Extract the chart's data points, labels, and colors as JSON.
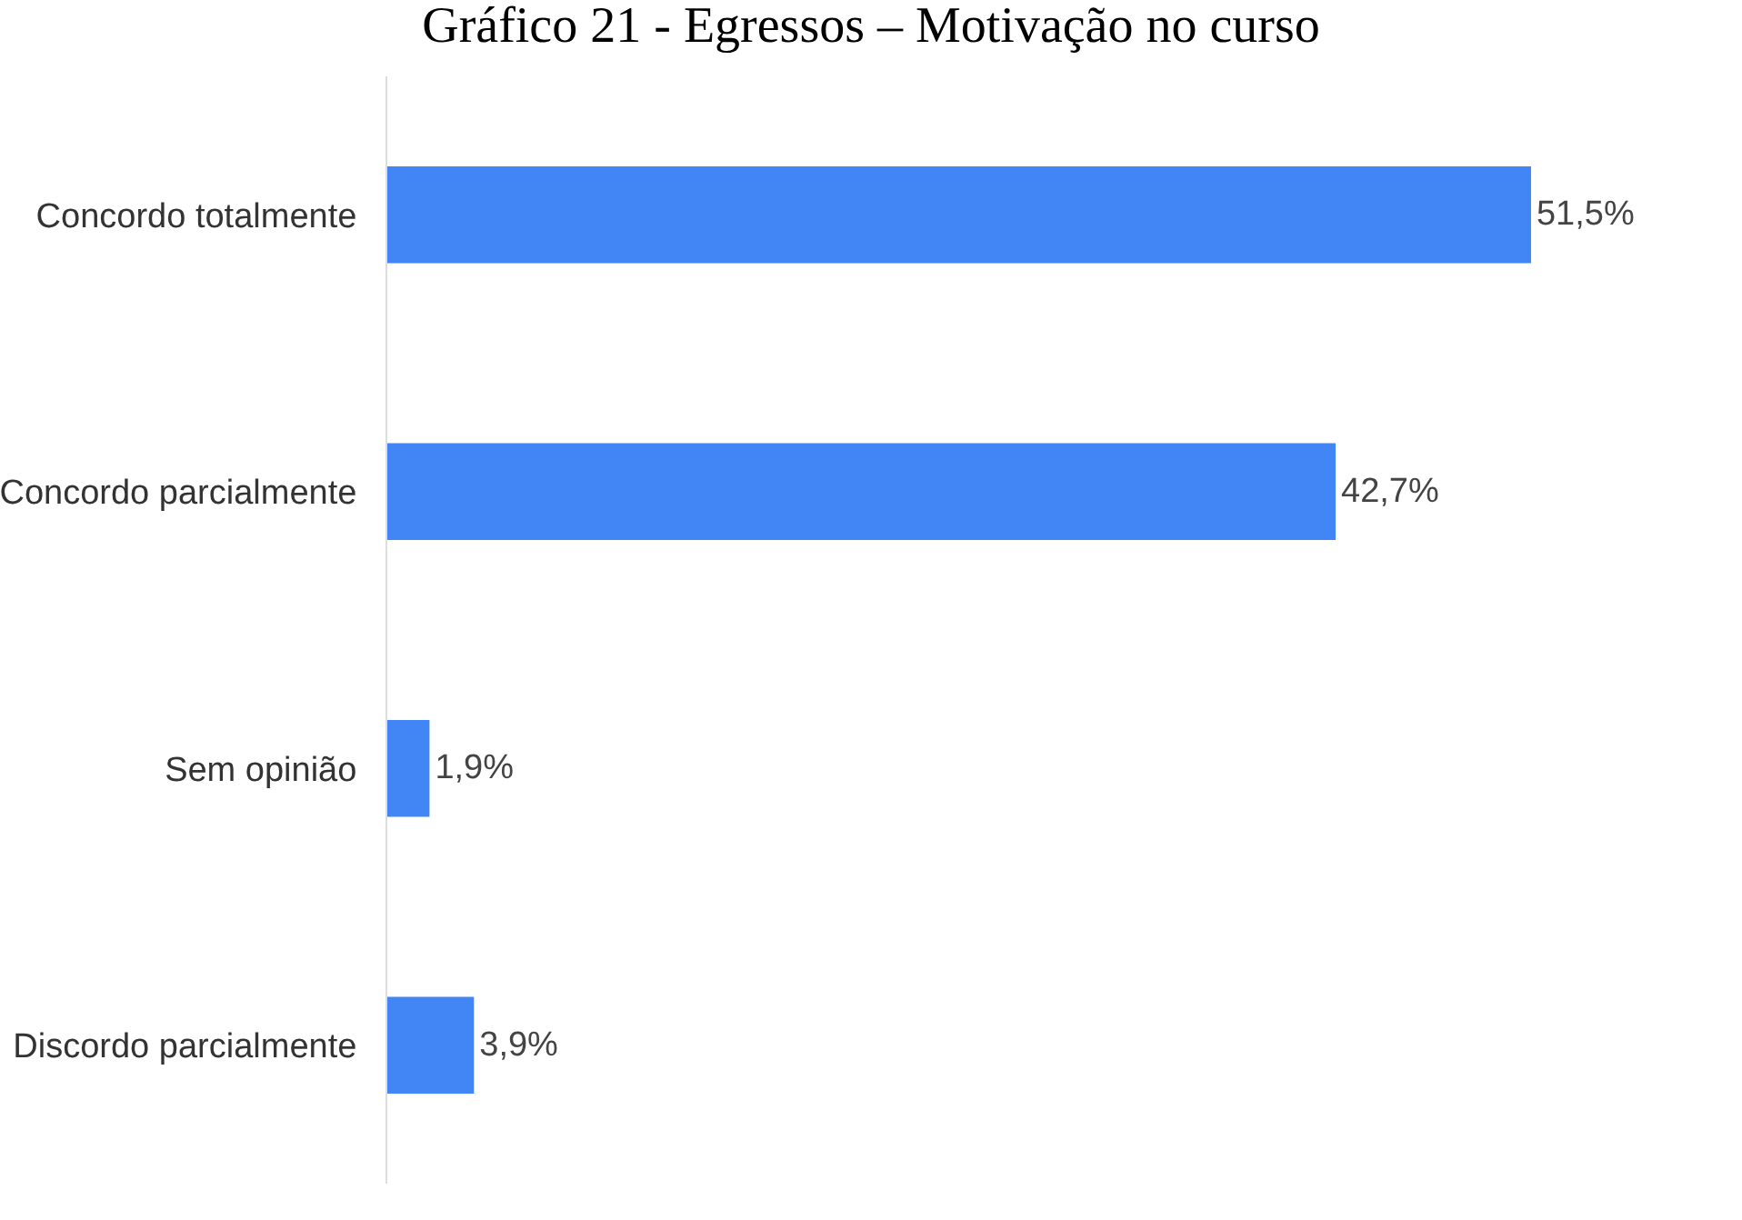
{
  "chart_data": {
    "type": "bar",
    "orientation": "horizontal",
    "title": "Gráfico 21 - Egressos – Motivação no curso",
    "categories": [
      "Concordo totalmente",
      "Concordo parcialmente",
      "Sem opinião",
      "Discordo parcialmente"
    ],
    "values": [
      51.5,
      42.7,
      1.9,
      3.9
    ],
    "value_labels": [
      "51,5%",
      "42,7%",
      "1,9%",
      "3,9%"
    ],
    "color": "#4285f4",
    "xlim": [
      0,
      61
    ],
    "grid": false,
    "legend": false
  }
}
